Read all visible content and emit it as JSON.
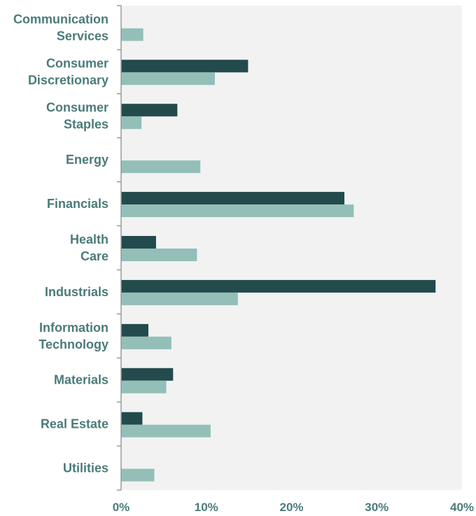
{
  "chart_data": {
    "type": "bar",
    "orientation": "horizontal",
    "categories": [
      [
        "Communication",
        "Services"
      ],
      [
        "Consumer",
        "Discretionary"
      ],
      [
        "Consumer",
        "Staples"
      ],
      [
        "Energy"
      ],
      [
        "Financials"
      ],
      [
        "Health",
        "Care"
      ],
      [
        "Industrials"
      ],
      [
        "Information",
        "Technology"
      ],
      [
        "Materials"
      ],
      [
        "Real Estate"
      ],
      [
        "Utilities"
      ]
    ],
    "series": [
      {
        "color": "#234a4c",
        "values": [
          0,
          14.9,
          6.6,
          0,
          26.2,
          4.1,
          36.9,
          3.2,
          6.1,
          2.5,
          0
        ]
      },
      {
        "color": "#93bfb8",
        "values": [
          2.6,
          11.0,
          2.4,
          9.3,
          27.3,
          8.9,
          13.7,
          5.9,
          5.3,
          10.5,
          3.9
        ]
      }
    ],
    "xlim": [
      0,
      40
    ],
    "xticks": [
      0,
      10,
      20,
      30,
      40
    ],
    "xtick_labels": [
      "0%",
      "10%",
      "20%",
      "30%",
      "40%"
    ],
    "title": "",
    "xlabel": "",
    "ylabel": "",
    "grid": false,
    "legend": "none",
    "colors": {
      "plot_background": "#f2f2f2",
      "axis": "#9a9a9a",
      "label_text": "#4b7b7a"
    }
  }
}
